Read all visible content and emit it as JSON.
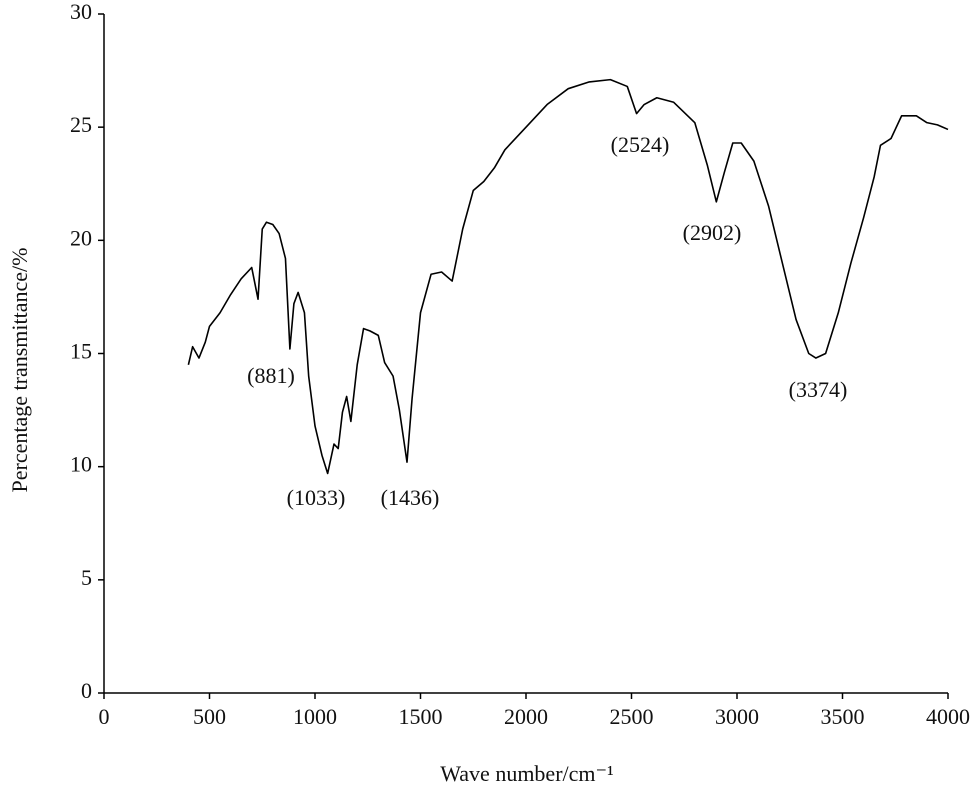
{
  "chart_data": {
    "type": "line",
    "x_label": "Wave number/cm⁻¹",
    "y_label": "Percentage transmittance/%",
    "color": "#000000",
    "x": [
      400,
      420,
      450,
      480,
      500,
      550,
      600,
      650,
      700,
      730,
      750,
      770,
      800,
      830,
      860,
      881,
      900,
      920,
      950,
      970,
      1000,
      1033,
      1060,
      1090,
      1110,
      1130,
      1150,
      1170,
      1200,
      1230,
      1260,
      1300,
      1330,
      1370,
      1400,
      1436,
      1460,
      1500,
      1550,
      1600,
      1650,
      1700,
      1750,
      1800,
      1850,
      1900,
      2000,
      2100,
      2200,
      2300,
      2400,
      2480,
      2524,
      2560,
      2620,
      2700,
      2800,
      2860,
      2902,
      2940,
      2980,
      3020,
      3080,
      3150,
      3220,
      3280,
      3340,
      3374,
      3420,
      3480,
      3540,
      3600,
      3650,
      3680,
      3730,
      3780,
      3850,
      3900,
      3950,
      4000
    ],
    "values": [
      14.5,
      15.3,
      14.8,
      15.5,
      16.2,
      16.8,
      17.6,
      18.3,
      18.8,
      17.4,
      20.5,
      20.8,
      20.7,
      20.3,
      19.2,
      15.2,
      17.2,
      17.7,
      16.8,
      14.0,
      11.8,
      10.5,
      9.7,
      11.0,
      10.8,
      12.4,
      13.1,
      12.0,
      14.5,
      16.1,
      16.0,
      15.8,
      14.6,
      14.0,
      12.5,
      10.2,
      13.0,
      16.8,
      18.5,
      18.6,
      18.2,
      20.5,
      22.2,
      22.6,
      23.2,
      24.0,
      25.0,
      26.0,
      26.7,
      27.0,
      27.1,
      26.8,
      25.6,
      26.0,
      26.3,
      26.1,
      25.2,
      23.3,
      21.7,
      23.0,
      24.3,
      24.3,
      23.5,
      21.5,
      18.8,
      16.5,
      15.0,
      14.8,
      15.0,
      16.8,
      19.0,
      21.0,
      22.8,
      24.2,
      24.5,
      25.5,
      25.5,
      25.2,
      25.1,
      24.9
    ],
    "annotations": [
      "(881)",
      "(1033)",
      "(1436)",
      "(2524)",
      "(2902)",
      "(3374)"
    ],
    "xlim": [
      0,
      4000
    ],
    "xticks": [
      0,
      500,
      1000,
      1500,
      2000,
      2500,
      3000,
      3500,
      4000
    ],
    "ylim": [
      0,
      30
    ],
    "yticks": [
      0,
      5,
      10,
      15,
      20,
      25,
      30
    ],
    "grid": false
  }
}
